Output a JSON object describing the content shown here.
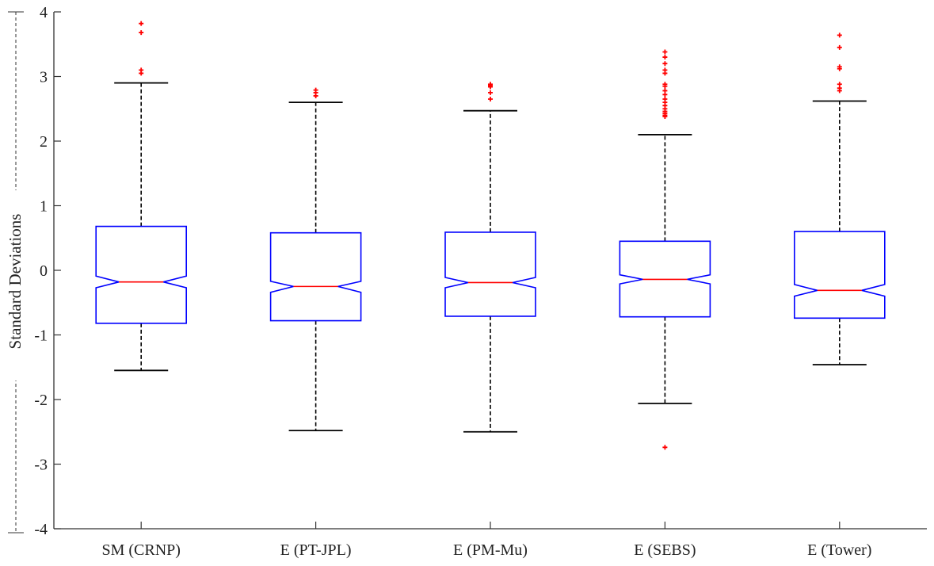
{
  "chart_data": {
    "type": "box",
    "title": "",
    "xlabel": "",
    "ylabel": "Standard Deviations",
    "ylim": [
      -4,
      4
    ],
    "yticks": [
      -4,
      -3,
      -2,
      -1,
      0,
      1,
      2,
      3,
      4
    ],
    "ytick_labels": [
      "-4",
      "-3",
      "-2",
      "-1",
      "0",
      "1",
      "2",
      "3",
      "4"
    ],
    "notched": true,
    "grid": false,
    "colors": {
      "box": "#0000ff",
      "median": "#ff0000",
      "whisker": "#000000",
      "outlier": "#ff0000",
      "axis": "#333333"
    },
    "categories": [
      "SM (CRNP)",
      "E (PT-JPL)",
      "E (PM-Mu)",
      "E (SEBS)",
      "E (Tower)"
    ],
    "boxes": [
      {
        "q1": -0.82,
        "median": -0.18,
        "q3": 0.68,
        "notch_low": -0.27,
        "notch_high": -0.09,
        "whisker_low": -1.55,
        "whisker_high": 2.9,
        "outliers": [
          3.82,
          3.68,
          3.1,
          3.05
        ]
      },
      {
        "q1": -0.78,
        "median": -0.25,
        "q3": 0.58,
        "notch_low": -0.34,
        "notch_high": -0.17,
        "whisker_low": -2.48,
        "whisker_high": 2.6,
        "outliers": [
          2.79,
          2.75,
          2.7
        ]
      },
      {
        "q1": -0.71,
        "median": -0.19,
        "q3": 0.59,
        "notch_low": -0.27,
        "notch_high": -0.11,
        "whisker_low": -2.5,
        "whisker_high": 2.47,
        "outliers": [
          2.88,
          2.86,
          2.84,
          2.75,
          2.65
        ]
      },
      {
        "q1": -0.72,
        "median": -0.14,
        "q3": 0.45,
        "notch_low": -0.21,
        "notch_high": -0.07,
        "whisker_low": -2.06,
        "whisker_high": 2.1,
        "outliers": [
          3.38,
          3.3,
          3.2,
          3.1,
          3.05,
          2.88,
          2.85,
          2.78,
          2.72,
          2.65,
          2.6,
          2.55,
          2.5,
          2.46,
          2.43,
          2.4,
          2.38,
          -2.74
        ]
      },
      {
        "q1": -0.74,
        "median": -0.31,
        "q3": 0.6,
        "notch_low": -0.4,
        "notch_high": -0.22,
        "whisker_low": -1.46,
        "whisker_high": 2.62,
        "outliers": [
          3.64,
          3.45,
          3.15,
          3.12,
          2.88,
          2.82,
          2.78
        ]
      }
    ]
  }
}
